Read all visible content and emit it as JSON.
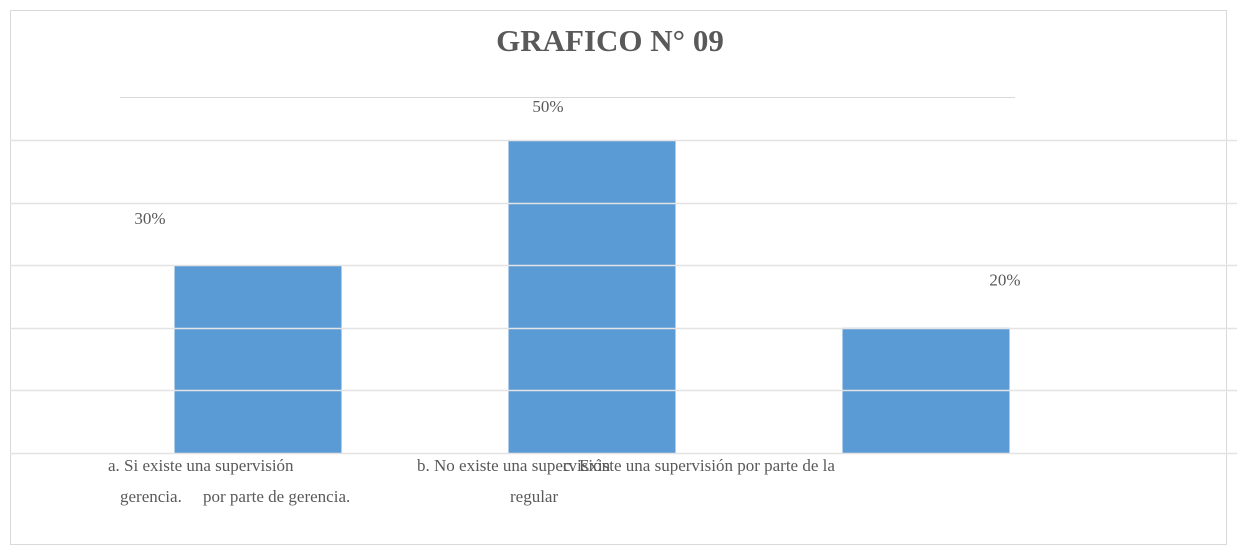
{
  "chart_data": {
    "type": "bar",
    "title": "GRAFICO N° 09",
    "categories": [
      [
        "a. Si existe una supervisión",
        "por parte de gerencia."
      ],
      [
        "b. No existe una supervisión",
        "regular"
      ],
      [
        "c. Existe una supervisión por parte de la",
        "gerencia."
      ]
    ],
    "values": [
      30,
      50,
      20
    ],
    "value_labels": [
      "30%",
      "50%",
      "20%"
    ],
    "color": "#5b9bd5",
    "ylim": [
      0,
      50
    ],
    "yticks": [
      0,
      10,
      20,
      30,
      40,
      50
    ],
    "grid": true
  }
}
